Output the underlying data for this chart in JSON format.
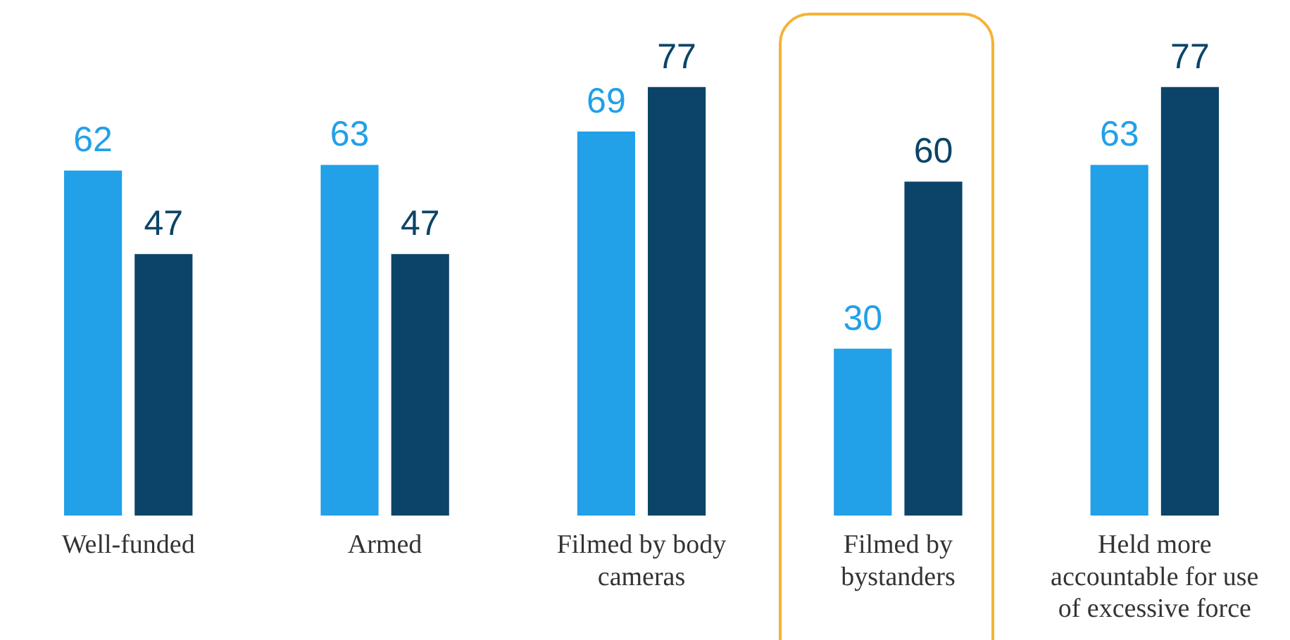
{
  "chart_data": {
    "type": "bar",
    "categories": [
      "Well-funded",
      "Armed",
      "Filmed by body cameras",
      "Filmed by bystanders",
      "Held more accountable for use of excessive force"
    ],
    "series": [
      {
        "color": "#22a0e8",
        "values": [
          62,
          63,
          69,
          30,
          63
        ]
      },
      {
        "color": "#0b4468",
        "values": [
          47,
          47,
          77,
          60,
          77
        ]
      }
    ],
    "data_labels": true,
    "grid": false,
    "legend": false
  }
}
